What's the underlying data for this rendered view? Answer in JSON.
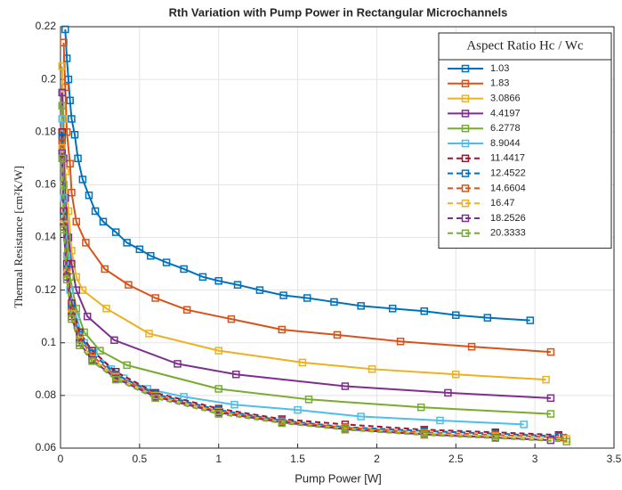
{
  "chart_data": {
    "type": "line",
    "title": "Rth Variation with Pump Power in Rectangular Microchannels",
    "x_label": "Pump Power [W]",
    "y_label": "Thermal Resistance [cm²K/W]",
    "legend_title": "Aspect Ratio Hc / Wc",
    "legend_position": "upper right",
    "grid": true,
    "xlim": [
      0,
      3.5
    ],
    "xticks": [
      0,
      0.5,
      1,
      1.5,
      2,
      2.5,
      3,
      3.5
    ],
    "ylim": [
      0.06,
      0.22
    ],
    "yticks": [
      0.06,
      0.08,
      0.1,
      0.12,
      0.14,
      0.16,
      0.18,
      0.2,
      0.22
    ],
    "series": [
      {
        "name": "1.03",
        "color": "#0072BD",
        "dashed": false,
        "x": [
          0.03,
          0.04,
          0.05,
          0.06,
          0.07,
          0.09,
          0.11,
          0.14,
          0.18,
          0.22,
          0.27,
          0.35,
          0.42,
          0.5,
          0.57,
          0.67,
          0.78,
          0.9,
          1.0,
          1.12,
          1.26,
          1.41,
          1.56,
          1.73,
          1.9,
          2.1,
          2.3,
          2.5,
          2.7,
          2.97
        ],
        "values": [
          0.219,
          0.208,
          0.2,
          0.192,
          0.185,
          0.179,
          0.17,
          0.162,
          0.156,
          0.15,
          0.146,
          0.142,
          0.138,
          0.1355,
          0.133,
          0.1305,
          0.128,
          0.125,
          0.1235,
          0.122,
          0.12,
          0.118,
          0.117,
          0.1155,
          0.114,
          0.113,
          0.112,
          0.1105,
          0.1095,
          0.1085
        ]
      },
      {
        "name": "1.83",
        "color": "#D95319",
        "dashed": false,
        "x": [
          0.02,
          0.03,
          0.04,
          0.06,
          0.07,
          0.1,
          0.16,
          0.28,
          0.43,
          0.6,
          0.8,
          1.08,
          1.4,
          1.75,
          2.15,
          2.6,
          3.1
        ],
        "values": [
          0.214,
          0.197,
          0.18,
          0.168,
          0.157,
          0.146,
          0.138,
          0.128,
          0.122,
          0.117,
          0.1125,
          0.109,
          0.105,
          0.103,
          0.1005,
          0.0985,
          0.0965
        ]
      },
      {
        "name": "3.0866",
        "color": "#EDB120",
        "dashed": false,
        "x": [
          0.01,
          0.02,
          0.03,
          0.05,
          0.07,
          0.1,
          0.14,
          0.29,
          0.56,
          1.0,
          1.53,
          1.97,
          2.5,
          3.07
        ],
        "values": [
          0.205,
          0.185,
          0.165,
          0.15,
          0.135,
          0.125,
          0.12,
          0.113,
          0.1035,
          0.097,
          0.0925,
          0.09,
          0.088,
          0.086
        ]
      },
      {
        "name": "4.4197",
        "color": "#7E2F8E",
        "dashed": false,
        "x": [
          0.01,
          0.02,
          0.03,
          0.05,
          0.07,
          0.1,
          0.17,
          0.34,
          0.74,
          1.11,
          1.8,
          2.45,
          3.1
        ],
        "values": [
          0.195,
          0.17,
          0.155,
          0.14,
          0.13,
          0.12,
          0.11,
          0.101,
          0.092,
          0.088,
          0.0835,
          0.081,
          0.079
        ]
      },
      {
        "name": "6.2778",
        "color": "#77AC30",
        "dashed": false,
        "x": [
          0.01,
          0.02,
          0.04,
          0.06,
          0.1,
          0.15,
          0.25,
          0.42,
          1.0,
          1.57,
          2.28,
          3.1
        ],
        "values": [
          0.19,
          0.16,
          0.14,
          0.125,
          0.113,
          0.104,
          0.097,
          0.0915,
          0.0825,
          0.0785,
          0.0755,
          0.073
        ]
      },
      {
        "name": "8.9044",
        "color": "#4DBEEE",
        "dashed": false,
        "x": [
          0.01,
          0.02,
          0.04,
          0.06,
          0.1,
          0.15,
          0.21,
          0.32,
          0.4,
          0.55,
          0.78,
          1.1,
          1.5,
          1.9,
          2.4,
          2.93
        ],
        "values": [
          0.185,
          0.155,
          0.133,
          0.12,
          0.11,
          0.1,
          0.097,
          0.09,
          0.0865,
          0.0825,
          0.0795,
          0.0765,
          0.0745,
          0.072,
          0.0705,
          0.069
        ]
      },
      {
        "name": "11.4417",
        "color": "#A2142F",
        "dashed": true,
        "x": [
          0.01,
          0.02,
          0.04,
          0.07,
          0.12,
          0.2,
          0.35,
          0.6,
          1.0,
          1.4,
          1.8,
          2.3,
          2.75,
          3.15
        ],
        "values": [
          0.18,
          0.15,
          0.13,
          0.115,
          0.104,
          0.097,
          0.089,
          0.081,
          0.075,
          0.071,
          0.069,
          0.067,
          0.066,
          0.065
        ]
      },
      {
        "name": "12.4522",
        "color": "#0072BD",
        "dashed": true,
        "x": [
          0.01,
          0.02,
          0.04,
          0.07,
          0.12,
          0.2,
          0.35,
          0.6,
          1.0,
          1.4,
          1.8,
          2.3,
          2.75,
          3.15
        ],
        "values": [
          0.178,
          0.148,
          0.128,
          0.113,
          0.103,
          0.096,
          0.088,
          0.0805,
          0.0745,
          0.0705,
          0.068,
          0.0665,
          0.0655,
          0.0645
        ]
      },
      {
        "name": "14.6604",
        "color": "#D95319",
        "dashed": true,
        "x": [
          0.01,
          0.02,
          0.04,
          0.07,
          0.12,
          0.2,
          0.35,
          0.6,
          1.0,
          1.4,
          1.8,
          2.3,
          2.75,
          3.18
        ],
        "values": [
          0.176,
          0.146,
          0.127,
          0.112,
          0.102,
          0.095,
          0.0875,
          0.08,
          0.074,
          0.0702,
          0.0678,
          0.066,
          0.065,
          0.064
        ]
      },
      {
        "name": "16.47",
        "color": "#EDB120",
        "dashed": true,
        "x": [
          0.01,
          0.02,
          0.04,
          0.07,
          0.12,
          0.2,
          0.35,
          0.6,
          1.0,
          1.4,
          1.8,
          2.3,
          2.75,
          3.2
        ],
        "values": [
          0.174,
          0.145,
          0.126,
          0.111,
          0.101,
          0.094,
          0.087,
          0.0798,
          0.0738,
          0.07,
          0.0675,
          0.0655,
          0.0645,
          0.0635
        ]
      },
      {
        "name": "18.2526",
        "color": "#7E2F8E",
        "dashed": true,
        "x": [
          0.01,
          0.02,
          0.04,
          0.07,
          0.12,
          0.2,
          0.35,
          0.6,
          1.0,
          1.4,
          1.8,
          2.3,
          2.75,
          3.1
        ],
        "values": [
          0.172,
          0.144,
          0.125,
          0.11,
          0.1,
          0.0935,
          0.0865,
          0.0795,
          0.0735,
          0.0698,
          0.0672,
          0.0652,
          0.064,
          0.063
        ]
      },
      {
        "name": "20.3333",
        "color": "#77AC30",
        "dashed": true,
        "x": [
          0.01,
          0.02,
          0.04,
          0.07,
          0.12,
          0.2,
          0.35,
          0.6,
          1.0,
          1.4,
          1.8,
          2.3,
          2.75,
          3.2
        ],
        "values": [
          0.17,
          0.143,
          0.124,
          0.109,
          0.099,
          0.093,
          0.086,
          0.079,
          0.073,
          0.0695,
          0.067,
          0.065,
          0.0638,
          0.0625
        ]
      }
    ]
  }
}
